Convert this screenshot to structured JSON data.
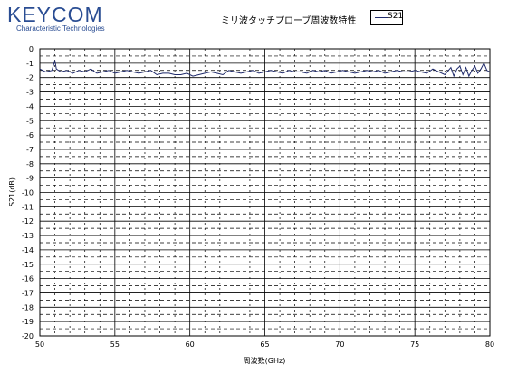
{
  "logo": {
    "word": "KEYCOM",
    "subtitle": "Characteristic Technologies",
    "color": "#2a4d93"
  },
  "chart_data": {
    "type": "line",
    "title": "ミリ波タッチプローブ周波数特性",
    "xlabel": "周波数(GHz)",
    "ylabel": "S21(dB)",
    "xlim": [
      50,
      80
    ],
    "ylim": [
      -20,
      0
    ],
    "x_ticks": [
      50,
      55,
      60,
      65,
      70,
      75,
      80
    ],
    "y_ticks": [
      0,
      -1,
      -2,
      -3,
      -4,
      -5,
      -6,
      -7,
      -8,
      -9,
      -10,
      -11,
      -12,
      -13,
      -14,
      -15,
      -16,
      -17,
      -18,
      -19,
      -20
    ],
    "grid": true,
    "legend_position": "top-right",
    "series": [
      {
        "name": "S21",
        "color": "#1f2a6b",
        "x": [
          50.0,
          50.4,
          50.8,
          51.0,
          51.1,
          51.4,
          51.8,
          52.2,
          52.6,
          53.0,
          53.4,
          53.8,
          54.2,
          54.6,
          55.0,
          55.4,
          55.8,
          56.2,
          56.6,
          57.0,
          57.4,
          57.8,
          58.2,
          58.6,
          59.0,
          59.4,
          59.8,
          60.2,
          60.6,
          61.0,
          61.4,
          61.8,
          62.2,
          62.6,
          63.0,
          63.4,
          63.8,
          64.2,
          64.6,
          65.0,
          65.4,
          65.8,
          66.2,
          66.6,
          67.0,
          67.4,
          67.8,
          68.2,
          68.6,
          69.0,
          69.4,
          69.8,
          70.2,
          70.6,
          71.0,
          71.4,
          71.8,
          72.2,
          72.6,
          73.0,
          73.4,
          73.8,
          74.2,
          74.6,
          75.0,
          75.4,
          75.8,
          76.2,
          76.6,
          77.0,
          77.4,
          77.6,
          77.8,
          78.0,
          78.2,
          78.4,
          78.6,
          78.8,
          79.0,
          79.2,
          79.4,
          79.6,
          79.8,
          80.0
        ],
        "y": [
          -1.4,
          -1.6,
          -1.5,
          -0.8,
          -1.4,
          -1.6,
          -1.5,
          -1.7,
          -1.5,
          -1.6,
          -1.4,
          -1.7,
          -1.6,
          -1.5,
          -1.7,
          -1.6,
          -1.5,
          -1.6,
          -1.7,
          -1.6,
          -1.5,
          -1.8,
          -1.7,
          -1.7,
          -1.8,
          -1.8,
          -1.7,
          -1.9,
          -1.8,
          -1.7,
          -1.6,
          -1.7,
          -1.8,
          -1.5,
          -1.6,
          -1.7,
          -1.6,
          -1.5,
          -1.7,
          -1.6,
          -1.5,
          -1.6,
          -1.7,
          -1.5,
          -1.6,
          -1.6,
          -1.7,
          -1.5,
          -1.6,
          -1.5,
          -1.7,
          -1.6,
          -1.5,
          -1.6,
          -1.7,
          -1.6,
          -1.5,
          -1.6,
          -1.5,
          -1.7,
          -1.6,
          -1.5,
          -1.6,
          -1.6,
          -1.5,
          -1.6,
          -1.7,
          -1.4,
          -1.6,
          -1.8,
          -1.3,
          -1.9,
          -1.4,
          -1.2,
          -1.8,
          -1.3,
          -1.9,
          -1.5,
          -1.2,
          -1.7,
          -1.4,
          -1.0,
          -1.5,
          -1.6
        ]
      }
    ]
  }
}
